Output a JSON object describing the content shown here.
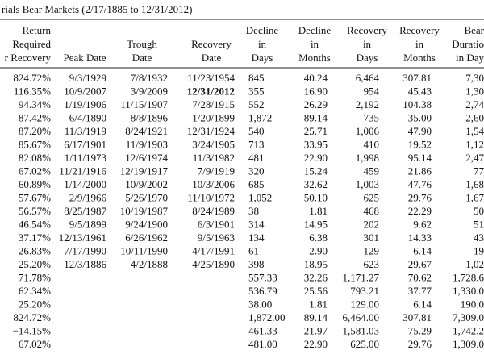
{
  "title": "rials Bear Markets (2/17/1885 to 12/31/2012)",
  "columns": [
    [
      "Return",
      "Required",
      "r Recovery"
    ],
    [
      "Peak Date"
    ],
    [
      "Trough",
      "Date"
    ],
    [
      "Recovery",
      "Date"
    ],
    [
      "Decline",
      "in",
      "Days"
    ],
    [
      "Decline",
      "in",
      "Months"
    ],
    [
      "Recovery",
      "in",
      "Days"
    ],
    [
      "Recovery",
      "in",
      "Months"
    ],
    [
      "Bear",
      "Duratio",
      "in Day"
    ]
  ],
  "rows": [
    [
      "824.72%",
      "9/3/1929",
      "7/8/1932",
      "11/23/1954",
      "845",
      "40.24",
      "6,464",
      "307.81",
      "7,30"
    ],
    [
      "116.35%",
      "10/9/2007",
      "3/9/2009",
      "12/31/2012",
      "355",
      "16.90",
      "954",
      "45.43",
      "1,30"
    ],
    [
      "94.34%",
      "1/19/1906",
      "11/15/1907",
      "7/28/1915",
      "552",
      "26.29",
      "2,192",
      "104.38",
      "2,74"
    ],
    [
      "87.42%",
      "6/4/1890",
      "8/8/1896",
      "1/20/1899",
      "1,872",
      "89.14",
      "735",
      "35.00",
      "2,60"
    ],
    [
      "87.20%",
      "11/3/1919",
      "8/24/1921",
      "12/31/1924",
      "540",
      "25.71",
      "1,006",
      "47.90",
      "1,54"
    ],
    [
      "85.67%",
      "6/17/1901",
      "11/9/1903",
      "3/24/1905",
      "713",
      "33.95",
      "410",
      "19.52",
      "1,12"
    ],
    [
      "82.08%",
      "1/11/1973",
      "12/6/1974",
      "11/3/1982",
      "481",
      "22.90",
      "1,998",
      "95.14",
      "2,47"
    ],
    [
      "67.02%",
      "11/21/1916",
      "12/19/1917",
      "7/9/1919",
      "320",
      "15.24",
      "459",
      "21.86",
      "77"
    ],
    [
      "60.89%",
      "1/14/2000",
      "10/9/2002",
      "10/3/2006",
      "685",
      "32.62",
      "1,003",
      "47.76",
      "1,68"
    ],
    [
      "57.67%",
      "2/9/1966",
      "5/26/1970",
      "11/10/1972",
      "1,052",
      "50.10",
      "625",
      "29.76",
      "1,67"
    ],
    [
      "56.57%",
      "8/25/1987",
      "10/19/1987",
      "8/24/1989",
      "38",
      "1.81",
      "468",
      "22.29",
      "50"
    ],
    [
      "46.54%",
      "9/5/1899",
      "9/24/1900",
      "6/3/1901",
      "314",
      "14.95",
      "202",
      "9.62",
      "51"
    ],
    [
      "37.17%",
      "12/13/1961",
      "6/26/1962",
      "9/5/1963",
      "134",
      "6.38",
      "301",
      "14.33",
      "43"
    ],
    [
      "26.83%",
      "7/17/1990",
      "10/11/1990",
      "4/17/1991",
      "61",
      "2.90",
      "129",
      "6.14",
      "19"
    ],
    [
      "25.20%",
      "12/3/1886",
      "4/2/1888",
      "4/25/1890",
      "398",
      "18.95",
      "623",
      "29.67",
      "1,02"
    ]
  ],
  "summary_rows": [
    [
      "71.78%",
      "557.33",
      "32.26",
      "1,171.27",
      "70.62",
      "1,728.6"
    ],
    [
      "62.34%",
      "536.79",
      "25.56",
      "793.21",
      "37.77",
      "1,330.0"
    ],
    [
      "25.20%",
      "38.00",
      "1.81",
      "129.00",
      "6.14",
      "190.0"
    ],
    [
      "824.72%",
      "1,872.00",
      "89.14",
      "6,464.00",
      "307.81",
      "7,309.0"
    ],
    [
      "−14.15%",
      "461.33",
      "21.97",
      "1,581.03",
      "75.29",
      "1,742.2"
    ],
    [
      "67.02%",
      "481.00",
      "22.90",
      "625.00",
      "29.76",
      "1,309.0"
    ]
  ],
  "bold_cells": [
    [
      1,
      3
    ]
  ]
}
